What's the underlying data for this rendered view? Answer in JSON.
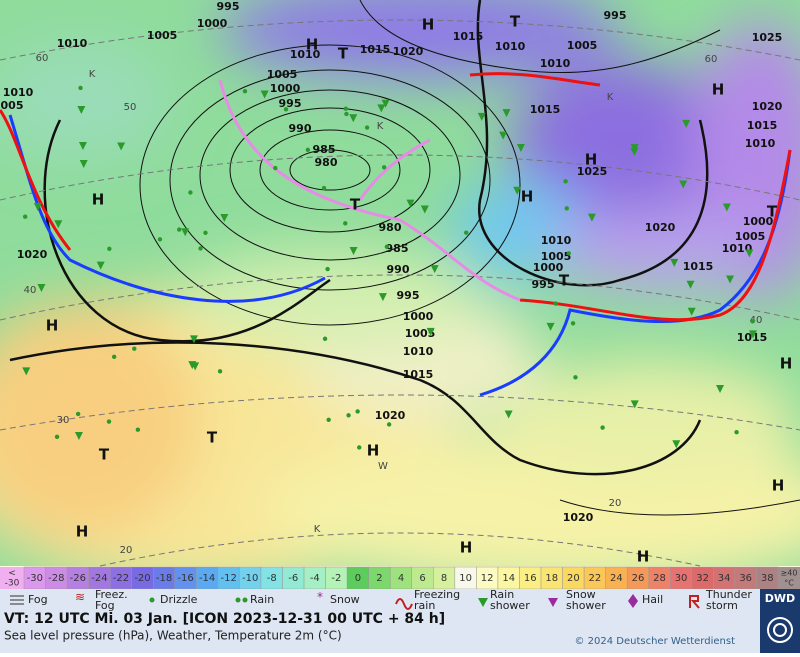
{
  "map": {
    "labels": [
      "995",
      "1000",
      "1005",
      "1010",
      "1010",
      "005",
      "H",
      "T",
      "1010",
      "1015",
      "1020",
      "H",
      "T",
      "1015",
      "1010",
      "995",
      "1005",
      "1010",
      "1025",
      "H",
      "1020",
      "1015",
      "1010",
      "1005",
      "1000",
      "995",
      "990",
      "985",
      "980",
      "T",
      "H",
      "1020",
      "H",
      "980",
      "985",
      "990",
      "995",
      "1000",
      "1005",
      "1010",
      "1015",
      "1020",
      "H",
      "T",
      "T",
      "H",
      "H",
      "H",
      "H",
      "H",
      "H",
      "1025",
      "1015",
      "1020",
      "1015",
      "1010",
      "1005",
      "1000",
      "995",
      "T",
      "1015",
      "H",
      "1020",
      "1005",
      "1010",
      "1000",
      "T",
      "K",
      "K",
      "K",
      "K",
      "W",
      "60",
      "50",
      "40",
      "30",
      "20",
      "60",
      "40",
      "20"
    ]
  },
  "color_scale": {
    "low_label": [
      "<",
      "-30"
    ],
    "values": [
      -30,
      -28,
      -26,
      -24,
      -22,
      -20,
      -18,
      -16,
      -14,
      -12,
      -10,
      -8,
      -6,
      -4,
      -2,
      0,
      2,
      4,
      6,
      8,
      10,
      12,
      14,
      16,
      18,
      20,
      22,
      24,
      26,
      28,
      30,
      32,
      34,
      36,
      38
    ],
    "colors": [
      "#dc98ec",
      "#cc8ce6",
      "#b67fe2",
      "#a277e0",
      "#8c6fe0",
      "#776ae2",
      "#6a7ce8",
      "#6292ee",
      "#5ba9f0",
      "#62c0f0",
      "#72d2ee",
      "#82e2e4",
      "#93ead4",
      "#a4f0c4",
      "#b5f2b6",
      "#5ccc5c",
      "#7cd86c",
      "#9ee27e",
      "#bdea8e",
      "#d7f09e",
      "#f8f8ea",
      "#fbfbc2",
      "#fbf6a2",
      "#fbef84",
      "#fbe572",
      "#fbd862",
      "#fbc758",
      "#fab150",
      "#f69958",
      "#ee8268",
      "#e67272",
      "#dc6a6a",
      "#d27272",
      "#c47a7a",
      "#ae8282"
    ],
    "high_label": [
      "≥40",
      "°C"
    ]
  },
  "legend": [
    "Fog",
    "Freez. Fog",
    "Drizzle",
    "Rain",
    "Snow",
    "Freezing rain",
    "Rain shower",
    "Snow shower",
    "Hail",
    "Thunder storm"
  ],
  "footer": {
    "valid_time": "VT: 12 UTC Mi.  03 Jan. [ICON 2023-12-31  00 UTC + 84 h]",
    "description": "Sea level pressure (hPa), Weather, Temperature 2m (°C)",
    "copyright": "© 2024 Deutscher Wetterdienst",
    "logo": "DWD"
  }
}
